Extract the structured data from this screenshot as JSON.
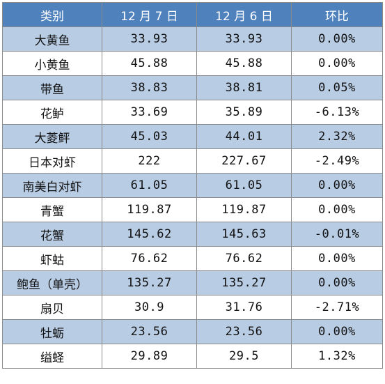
{
  "colors": {
    "header_bg": "#4f81bd",
    "header_text": "#ffffff",
    "shaded_row_bg": "#b8cce4",
    "plain_row_bg": "#ffffff",
    "border": "#8a8a8a"
  },
  "table": {
    "headers": [
      "类别",
      "12 月 7 日",
      "12 月 6 日",
      "环比"
    ],
    "rows": [
      [
        "大黄鱼",
        "33.93",
        "33.93",
        "0.00%"
      ],
      [
        "小黄鱼",
        "45.88",
        "45.88",
        "0.00%"
      ],
      [
        "带鱼",
        "38.83",
        "38.81",
        "0.05%"
      ],
      [
        "花鲈",
        "33.69",
        "35.89",
        "-6.13%"
      ],
      [
        "大菱鲆",
        "45.03",
        "44.01",
        "2.32%"
      ],
      [
        "日本对虾",
        "222",
        "227.67",
        "-2.49%"
      ],
      [
        "南美白对虾",
        "61.05",
        "61.05",
        "0.00%"
      ],
      [
        "青蟹",
        "119.87",
        "119.87",
        "0.00%"
      ],
      [
        "花蟹",
        "145.62",
        "145.63",
        "-0.01%"
      ],
      [
        "虾蛄",
        "76.62",
        "76.62",
        "0.00%"
      ],
      [
        "鲍鱼（单壳）",
        "135.27",
        "135.27",
        "0.00%"
      ],
      [
        "扇贝",
        "30.9",
        "31.76",
        "-2.71%"
      ],
      [
        "牡蛎",
        "23.56",
        "23.56",
        "0.00%"
      ],
      [
        "缢蛏",
        "29.89",
        "29.5",
        "1.32%"
      ]
    ]
  }
}
